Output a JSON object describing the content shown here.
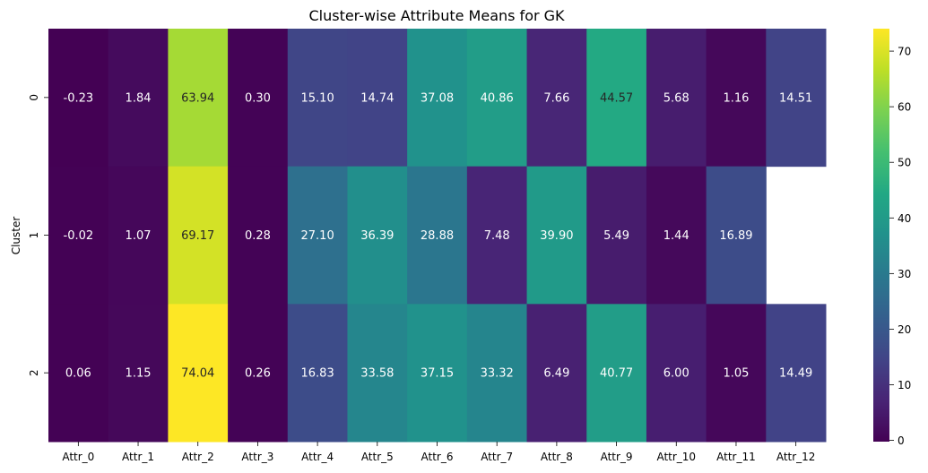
{
  "chart_data": {
    "type": "heatmap",
    "title": "Cluster-wise Attribute Means for GK",
    "xlabel": "",
    "ylabel": "Cluster",
    "columns": [
      "Attr_0",
      "Attr_1",
      "Attr_2",
      "Attr_3",
      "Attr_4",
      "Attr_5",
      "Attr_6",
      "Attr_7",
      "Attr_8",
      "Attr_9",
      "Attr_10",
      "Attr_11",
      "Attr_12"
    ],
    "rows": [
      "0",
      "1",
      "2"
    ],
    "values": [
      [
        -0.23,
        1.84,
        63.94,
        0.3,
        15.1,
        14.74,
        37.08,
        40.86,
        7.66,
        44.57,
        5.68,
        1.16,
        14.51
      ],
      [
        -0.02,
        1.07,
        69.17,
        0.28,
        27.1,
        36.39,
        28.88,
        7.48,
        39.9,
        5.49,
        1.44,
        16.89,
        null
      ],
      [
        0.06,
        1.15,
        74.04,
        0.26,
        16.83,
        33.58,
        37.15,
        33.32,
        6.49,
        40.77,
        6.0,
        1.05,
        14.49
      ]
    ],
    "labels": [
      [
        "-0.23",
        "1.84",
        "63.94",
        "0.30",
        "15.10",
        "14.74",
        "37.08",
        "40.86",
        "7.66",
        "44.57",
        "5.68",
        "1.16",
        "14.51"
      ],
      [
        "-0.02",
        "1.07",
        "69.17",
        "0.28",
        "27.10",
        "36.39",
        "28.88",
        "7.48",
        "39.90",
        "5.49",
        "1.44",
        "16.89",
        ""
      ],
      [
        "0.06",
        "1.15",
        "74.04",
        "0.26",
        "16.83",
        "33.58",
        "37.15",
        "33.32",
        "6.49",
        "40.77",
        "6.00",
        "1.05",
        "14.49"
      ]
    ],
    "colormap": "viridis",
    "vmin": -0.23,
    "vmax": 74.04,
    "colorbar_ticks": [
      "0",
      "10",
      "20",
      "30",
      "40",
      "50",
      "60",
      "70"
    ],
    "colorbar_tick_values": [
      0,
      10,
      20,
      30,
      40,
      50,
      60,
      70
    ]
  }
}
